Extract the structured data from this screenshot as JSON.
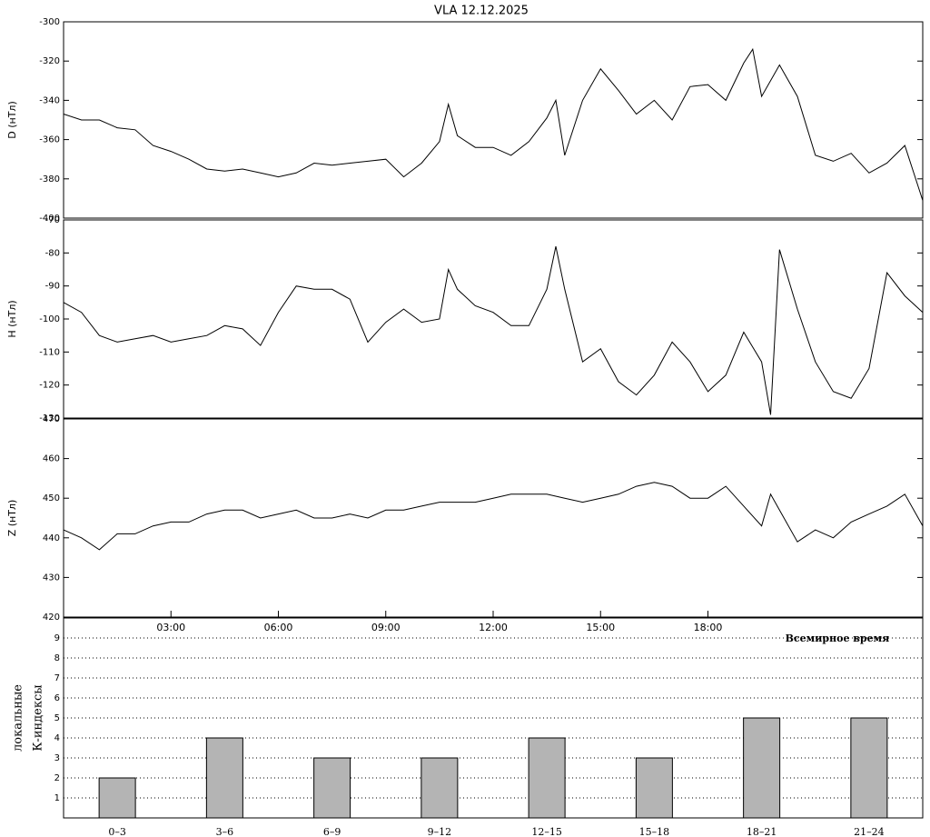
{
  "chart_data": [
    {
      "type": "line",
      "title": "VLA   12.12.2025",
      "ylabel": "D (нТл)",
      "color": "#000000",
      "x": [
        0,
        0.5,
        1,
        1.5,
        2,
        2.5,
        3,
        3.5,
        4,
        4.5,
        5,
        5.5,
        6,
        6.5,
        7,
        7.5,
        8,
        8.5,
        9,
        9.5,
        10,
        10.5,
        10.75,
        11,
        11.5,
        12,
        12.5,
        13,
        13.5,
        13.75,
        14,
        14.5,
        15,
        15.5,
        16,
        16.5,
        17,
        17.5,
        18,
        18.5,
        19,
        19.25,
        19.5,
        20,
        20.5,
        21,
        21.5,
        22,
        22.5,
        23,
        23.5,
        24
      ],
      "values": [
        -347,
        -350,
        -350,
        -354,
        -355,
        -363,
        -366,
        -370,
        -375,
        -376,
        -375,
        -377,
        -379,
        -377,
        -372,
        -373,
        -372,
        -371,
        -370,
        -379,
        -372,
        -361,
        -342,
        -358,
        -364,
        -364,
        -368,
        -361,
        -349,
        -340,
        -368,
        -340,
        -324,
        -335,
        -347,
        -340,
        -350,
        -333,
        -332,
        -340,
        -321,
        -314,
        -338,
        -322,
        -338,
        -368,
        -371,
        -367,
        -377,
        -372,
        -363,
        -391
      ],
      "xlim": [
        0,
        24
      ],
      "ylim": [
        -400,
        -300
      ],
      "yticks": [
        -400,
        -380,
        -360,
        -340,
        -320,
        -300
      ]
    },
    {
      "type": "line",
      "ylabel": "H (нТл)",
      "color": "#000000",
      "x": [
        0,
        0.5,
        1,
        1.5,
        2,
        2.5,
        3,
        3.5,
        4,
        4.5,
        5,
        5.5,
        6,
        6.5,
        7,
        7.5,
        8,
        8.5,
        9,
        9.5,
        10,
        10.5,
        10.75,
        11,
        11.5,
        12,
        12.5,
        13,
        13.5,
        13.75,
        14,
        14.5,
        15,
        15.5,
        16,
        16.5,
        17,
        17.5,
        18,
        18.5,
        19,
        19.5,
        19.75,
        20,
        20.5,
        21,
        21.5,
        22,
        22.5,
        23,
        23.5,
        24
      ],
      "values": [
        -95,
        -98,
        -105,
        -107,
        -106,
        -105,
        -107,
        -106,
        -105,
        -102,
        -103,
        -108,
        -98,
        -90,
        -91,
        -91,
        -94,
        -107,
        -101,
        -97,
        -101,
        -100,
        -85,
        -91,
        -96,
        -98,
        -102,
        -102,
        -91,
        -78,
        -91,
        -113,
        -109,
        -119,
        -123,
        -117,
        -107,
        -113,
        -122,
        -117,
        -104,
        -113,
        -129,
        -79,
        -97,
        -113,
        -122,
        -124,
        -115,
        -86,
        -93,
        -98
      ],
      "xlim": [
        0,
        24
      ],
      "ylim": [
        -130,
        -70
      ],
      "yticks": [
        -130,
        -120,
        -110,
        -100,
        -90,
        -80,
        -70
      ]
    },
    {
      "type": "line",
      "ylabel": "Z (нТл)",
      "color": "#000000",
      "xlabel": "Всемирное время",
      "x": [
        0,
        0.5,
        1,
        1.5,
        2,
        2.5,
        3,
        3.5,
        4,
        4.5,
        5,
        5.5,
        6,
        6.5,
        7,
        7.5,
        8,
        8.5,
        9,
        9.5,
        10,
        10.5,
        11,
        11.5,
        12,
        12.5,
        13,
        13.5,
        14,
        14.5,
        15,
        15.5,
        16,
        16.5,
        17,
        17.5,
        18,
        18.5,
        19,
        19.5,
        19.75,
        20,
        20.5,
        21,
        21.5,
        22,
        22.5,
        23,
        23.5,
        24
      ],
      "values": [
        442,
        440,
        437,
        441,
        441,
        443,
        444,
        444,
        446,
        447,
        447,
        445,
        446,
        447,
        445,
        445,
        446,
        445,
        447,
        447,
        448,
        449,
        449,
        449,
        450,
        451,
        451,
        451,
        450,
        449,
        450,
        451,
        453,
        454,
        453,
        450,
        450,
        453,
        448,
        443,
        451,
        447,
        439,
        442,
        440,
        444,
        446,
        448,
        451,
        443
      ],
      "xlim": [
        0,
        24
      ],
      "ylim": [
        420,
        470
      ],
      "yticks": [
        420,
        430,
        440,
        450,
        460,
        470
      ],
      "xticks": [
        {
          "value": 3,
          "label": "03:00"
        },
        {
          "value": 6,
          "label": "06:00"
        },
        {
          "value": 9,
          "label": "09:00"
        },
        {
          "value": 12,
          "label": "12:00"
        },
        {
          "value": 15,
          "label": "15:00"
        },
        {
          "value": 18,
          "label": "18:00"
        }
      ]
    },
    {
      "type": "bar",
      "ylabel": [
        "локальные",
        "К-индексы"
      ],
      "color": "#b4b4b4",
      "categories": [
        "0–3",
        "3–6",
        "6–9",
        "9–12",
        "12–15",
        "15–18",
        "18–21",
        "21–24"
      ],
      "values": [
        2,
        4,
        3,
        3,
        4,
        3,
        5,
        5
      ],
      "ylim": [
        0,
        10
      ],
      "yticks": [
        1,
        2,
        3,
        4,
        5,
        6,
        7,
        8,
        9
      ],
      "grid": true
    }
  ]
}
